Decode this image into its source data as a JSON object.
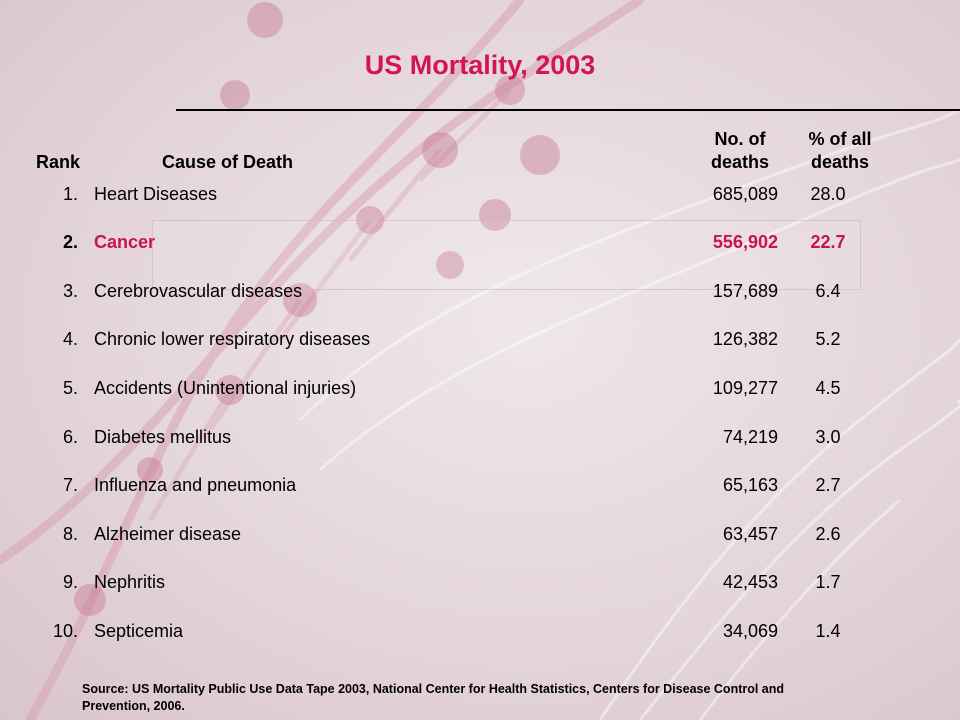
{
  "title": "US Mortality, 2003",
  "headers": {
    "rank": "Rank",
    "cause": "Cause of Death",
    "no_line1": "No. of",
    "no_line2": "deaths",
    "pct_line1": "% of all",
    "pct_line2": "deaths"
  },
  "rows": [
    {
      "rank": "1.",
      "cause": "Heart Diseases",
      "deaths": "685,089",
      "pct": "28.0"
    },
    {
      "rank": "2.",
      "cause": "Cancer",
      "deaths": "556,902",
      "pct": "22.7"
    },
    {
      "rank": "3.",
      "cause": "Cerebrovascular diseases",
      "deaths": "157,689",
      "pct": "6.4"
    },
    {
      "rank": "4.",
      "cause": "Chronic lower respiratory diseases",
      "deaths": "126,382",
      "pct": "5.2"
    },
    {
      "rank": "5.",
      "cause": "Accidents (Unintentional injuries)",
      "deaths": "109,277",
      "pct": "4.5"
    },
    {
      "rank": "6.",
      "cause": "Diabetes mellitus",
      "deaths": "74,219",
      "pct": "3.0"
    },
    {
      "rank": "7.",
      "cause": "Influenza and pneumonia",
      "deaths": "65,163",
      "pct": "2.7"
    },
    {
      "rank": "8.",
      "cause": "Alzheimer disease",
      "deaths": "63,457",
      "pct": "2.6"
    },
    {
      "rank": "9.",
      "cause": "Nephritis",
      "deaths": "42,453",
      "pct": "1.7"
    },
    {
      "rank": "10.",
      "cause": "Septicemia",
      "deaths": "34,069",
      "pct": "1.4"
    }
  ],
  "source_line1": "Source: US Mortality Public Use Data Tape 2003, National Center for Health Statistics, Centers for Disease Control and",
  "source_line2": "Prevention, 2006.",
  "colors": {
    "accent": "#d4145a",
    "highlight_text": "#c8154f",
    "background": "#e6d8dd"
  }
}
